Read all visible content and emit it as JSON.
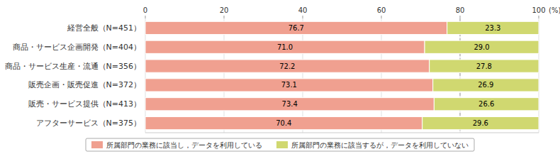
{
  "chart_data": {
    "type": "bar",
    "orientation": "horizontal",
    "stacked": true,
    "categories": [
      "経営全般（N=451）",
      "商品・サービス企画開発（N=404）",
      "商品・サービス生産・流通（N=356）",
      "販売企画・販売促進（N=372）",
      "販売・サービス提供（N=413）",
      "アフターサービス（N=375）"
    ],
    "series": [
      {
        "name": "所属部門の業務に該当し，データを利用している",
        "color": "#f0a090",
        "values": [
          76.7,
          71.0,
          72.2,
          73.1,
          73.4,
          70.4
        ],
        "value_labels": [
          "76.7",
          "71.0",
          "72.2",
          "73.1",
          "73.4",
          "70.4"
        ]
      },
      {
        "name": "所属部門の業務に該当するが，データを利用していない",
        "color": "#d0d870",
        "values": [
          23.3,
          29.0,
          27.8,
          26.9,
          26.6,
          29.6
        ],
        "value_labels": [
          "23.3",
          "29.0",
          "27.8",
          "26.9",
          "26.6",
          "29.6"
        ]
      }
    ],
    "xlabel": "(%)",
    "xlim": [
      0,
      100
    ],
    "xticks": [
      0,
      20,
      40,
      60,
      80,
      100
    ],
    "reference_line": 80,
    "grid": true,
    "data_labels": true,
    "legend": "bottom"
  }
}
